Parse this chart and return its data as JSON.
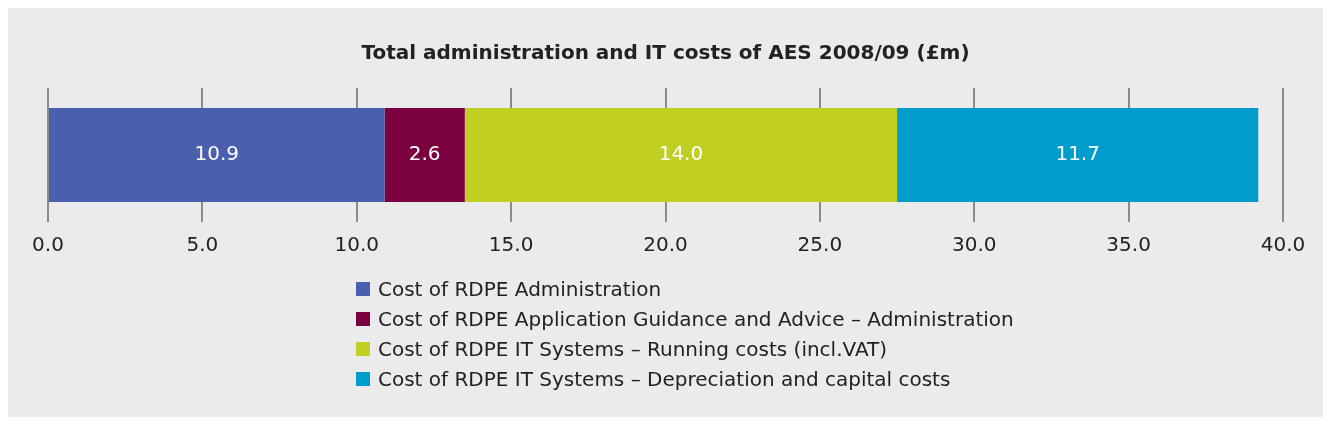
{
  "chart_data": {
    "type": "bar",
    "orientation": "horizontal",
    "stacked": true,
    "title": "Total administration and IT costs of AES 2008/09 (£m)",
    "categories": [
      null
    ],
    "series": [
      {
        "name": "Cost of RDPE Administration",
        "color": "#4a5fad",
        "values": [
          10.9
        ]
      },
      {
        "name": "Cost of RDPE Application Guidance and Advice – Administration",
        "color": "#7a0040",
        "values": [
          2.6
        ]
      },
      {
        "name": "Cost of RDPE IT Systems – Running costs (incl.VAT)",
        "color": "#c0cf22",
        "values": [
          14.0
        ],
        "value_labels": [
          "14.0"
        ]
      },
      {
        "name": "Cost of RDPE IT Systems – Depreciation and capital costs",
        "color": "#009ccb",
        "values": [
          11.7
        ]
      }
    ],
    "xlim": [
      0,
      40
    ],
    "xticks": [
      {
        "value": 0,
        "label": "0.0"
      },
      {
        "value": 5,
        "label": "5.0"
      },
      {
        "value": 10,
        "label": "10.0"
      },
      {
        "value": 15,
        "label": "15.0"
      },
      {
        "value": 20,
        "label": "20.0"
      },
      {
        "value": 25,
        "label": "25.0"
      },
      {
        "value": 30,
        "label": "30.0"
      },
      {
        "value": 35,
        "label": "35.0"
      },
      {
        "value": 40,
        "label": "40.0"
      }
    ],
    "grid": "x",
    "legend": "bottom",
    "data_labels": true
  }
}
